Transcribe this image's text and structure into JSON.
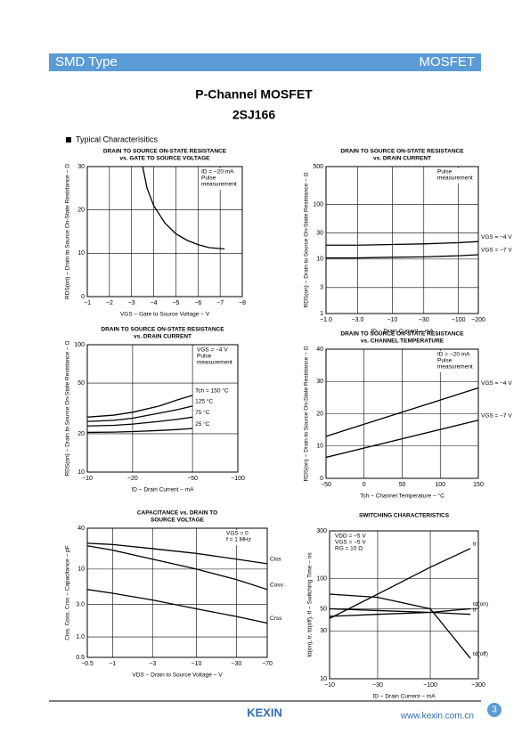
{
  "header": {
    "left": "SMD Type",
    "right": "MOSFET"
  },
  "title": "P-Channel MOSFET",
  "part": "2SJ166",
  "section": "Typical Characterisitics",
  "footer": {
    "logo": "KEXIN",
    "url": "www.kexin.com.cn",
    "page": "3"
  },
  "chart_data": [
    {
      "type": "line",
      "title": [
        "DRAIN TO SOURCE ON-STATE RESISTANCE",
        "vs. GATE TO SOURCE VOLTAGE"
      ],
      "xlabel": "VGS − Gate to Source Voltage − V",
      "ylabel": "RDS(on) − Drain to Source On-State Resistance − Ω",
      "xscale": "linear",
      "yscale": "linear",
      "xlim": [
        -1,
        -8
      ],
      "xticks": [
        {
          "value": -1,
          "label": "−1"
        },
        {
          "value": -2,
          "label": "−2"
        },
        {
          "value": -3,
          "label": "−3"
        },
        {
          "value": -4,
          "label": "−4"
        },
        {
          "value": -5,
          "label": "−5"
        },
        {
          "value": -6,
          "label": "−6"
        },
        {
          "value": -7,
          "label": "−7"
        },
        {
          "value": -8,
          "label": "−8"
        }
      ],
      "ylim": [
        0,
        30
      ],
      "yticks": [
        0,
        10,
        20,
        30
      ],
      "grid": true,
      "notes": [
        "ID = −20 mA",
        "Pulse",
        "measurement"
      ],
      "note_corner": "upper right",
      "series": [
        {
          "color": "#000000",
          "x": [
            -3.5,
            -3.7,
            -4,
            -4.5,
            -5,
            -5.5,
            -6,
            -6.5,
            -7.2
          ],
          "values": [
            30,
            25,
            21,
            17,
            14.5,
            13,
            12,
            11.3,
            11
          ]
        }
      ]
    },
    {
      "type": "line",
      "title": [
        "DRAIN TO SOURCE ON-STATE RESISTANCE",
        "vs. DRAIN CURRENT"
      ],
      "xlabel": "ID − Drain Current − mA",
      "ylabel": "RDS(on) − Drain to Source On-State Resistance − Ω",
      "xscale": "log",
      "yscale": "log",
      "xlim": [
        -1,
        -200
      ],
      "xticks": [
        {
          "value": -1,
          "label": "−1.0"
        },
        {
          "value": -3,
          "label": "−3.0"
        },
        {
          "value": -10,
          "label": "−10"
        },
        {
          "value": -30,
          "label": "−30"
        },
        {
          "value": -100,
          "label": "−100"
        },
        {
          "value": -200,
          "label": "−200"
        }
      ],
      "ylim": [
        1,
        500
      ],
      "yticks": [
        1,
        3,
        10,
        30,
        100,
        500
      ],
      "grid": true,
      "notes": [
        "Pulse",
        "measurement"
      ],
      "note_corner": "upper right",
      "series": [
        {
          "name": "VGS = −4 V",
          "color": "#000000",
          "x": [
            -1,
            -3,
            -10,
            -30,
            -100,
            -200
          ],
          "values": [
            18,
            18,
            18.5,
            19,
            20,
            21
          ]
        },
        {
          "name": "VGS = −7 V",
          "color": "#000000",
          "x": [
            -1,
            -3,
            -10,
            -30,
            -100,
            -200
          ],
          "values": [
            10.5,
            10.5,
            10.8,
            11,
            11.5,
            12
          ]
        }
      ]
    },
    {
      "type": "line",
      "title": [
        "DRAIN TO SOURCE ON-STATE RESISTANCE",
        "vs. DRAIN CURRENT"
      ],
      "xlabel": "ID − Drain Current − mA",
      "ylabel": "RDS(on) − Drain to Source On-State Resistance − Ω",
      "xscale": "log",
      "yscale": "log",
      "xlim": [
        -10,
        -100
      ],
      "xticks": [
        {
          "value": -10,
          "label": "−10"
        },
        {
          "value": -20,
          "label": "−20"
        },
        {
          "value": -50,
          "label": "−50"
        },
        {
          "value": -100,
          "label": "−100"
        }
      ],
      "ylim": [
        10,
        100
      ],
      "yticks": [
        10,
        20,
        50,
        100
      ],
      "grid": true,
      "notes": [
        "VGS = −4 V",
        "Pulse",
        "measurement"
      ],
      "note_corner": "upper right",
      "series": [
        {
          "name": "Tch = 150 °C",
          "color": "#000000",
          "x": [
            -10,
            -15,
            -20,
            -30,
            -40,
            -50
          ],
          "values": [
            27,
            28,
            29.5,
            33,
            37,
            40
          ]
        },
        {
          "name": "125 °C",
          "color": "#000000",
          "x": [
            -10,
            -15,
            -20,
            -30,
            -40,
            -50
          ],
          "values": [
            25,
            25.5,
            26.5,
            29,
            31,
            33
          ]
        },
        {
          "name": "75 °C",
          "color": "#000000",
          "x": [
            -10,
            -15,
            -20,
            -30,
            -40,
            -50
          ],
          "values": [
            23,
            23.3,
            23.8,
            25,
            26,
            27
          ]
        },
        {
          "name": "25 °C",
          "color": "#000000",
          "x": [
            -10,
            -15,
            -20,
            -30,
            -40,
            -50
          ],
          "values": [
            20.5,
            20.6,
            20.8,
            21.2,
            21.6,
            22
          ]
        }
      ]
    },
    {
      "type": "line",
      "title": [
        "DRAIN TO SOURCE ON-STATE RESISTANCE",
        "vs. CHANNEL TEMPERATURE"
      ],
      "xlabel": "Tch − Channel Temperature − °C",
      "ylabel": "RDS(on) − Drain to Source On-State Resistance − Ω",
      "xscale": "linear",
      "yscale": "linear",
      "xlim": [
        -50,
        150
      ],
      "xticks": [
        {
          "value": -50,
          "label": "−50"
        },
        0,
        50,
        100,
        150
      ],
      "ylim": [
        0,
        40
      ],
      "yticks": [
        0,
        10,
        20,
        30,
        40
      ],
      "grid": true,
      "notes": [
        "ID = −20 mA",
        "Pulse",
        "measurement"
      ],
      "note_corner": "upper right",
      "series": [
        {
          "name": "VGS = −4 V",
          "color": "#000000",
          "x": [
            -50,
            150
          ],
          "values": [
            13,
            28
          ]
        },
        {
          "name": "VGS = −7 V",
          "color": "#000000",
          "x": [
            -50,
            150
          ],
          "values": [
            6.5,
            18
          ]
        }
      ]
    },
    {
      "type": "line",
      "title": [
        "CAPACITANCE vs. DRAIN TO",
        "SOURCE VOLTAGE"
      ],
      "xlabel": "VDS − Drain to Source Voltage − V",
      "ylabel": "Ciss, Coss, Crss − Capacitance − pF",
      "xscale": "log",
      "yscale": "log",
      "xlim": [
        -0.5,
        -70
      ],
      "xticks": [
        {
          "value": -0.5,
          "label": "−0.5"
        },
        {
          "value": -1,
          "label": "−1"
        },
        {
          "value": -3,
          "label": "−3"
        },
        {
          "value": -10,
          "label": "−10"
        },
        {
          "value": -30,
          "label": "−30"
        },
        {
          "value": -70,
          "label": "−70"
        }
      ],
      "ylim": [
        0.5,
        40
      ],
      "yticks": [
        0.5,
        {
          "value": 1,
          "label": "1.0"
        },
        {
          "value": 3,
          "label": "3.0"
        },
        10,
        40
      ],
      "grid": true,
      "notes": [
        "VGS = 0",
        "f = 1 MHz"
      ],
      "note_corner": "upper right",
      "series": [
        {
          "name": "Ciss",
          "color": "#000000",
          "x": [
            -0.5,
            -1,
            -3,
            -10,
            -30,
            -70
          ],
          "values": [
            24,
            23,
            20,
            17,
            14,
            12
          ]
        },
        {
          "name": "Coss",
          "color": "#000000",
          "x": [
            -0.5,
            -1,
            -3,
            -10,
            -30,
            -70
          ],
          "values": [
            22,
            19,
            14,
            10,
            7,
            5
          ]
        },
        {
          "name": "Crss",
          "color": "#000000",
          "x": [
            -0.5,
            -1,
            -3,
            -10,
            -30,
            -70
          ],
          "values": [
            5,
            4.4,
            3.5,
            2.6,
            2,
            1.6
          ]
        }
      ]
    },
    {
      "type": "line",
      "title": [
        "SWITCHING CHARACTERISTICS"
      ],
      "xlabel": "ID − Drain Current − mA",
      "ylabel": "td(on), tr, td(off), tf − Switching Time − ns",
      "xscale": "log",
      "yscale": "log",
      "xlim": [
        -10,
        -300
      ],
      "xticks": [
        {
          "value": -10,
          "label": "−10"
        },
        {
          "value": -30,
          "label": "−30"
        },
        {
          "value": -100,
          "label": "−100"
        },
        {
          "value": -300,
          "label": "−300"
        }
      ],
      "ylim": [
        10,
        300
      ],
      "yticks": [
        10,
        30,
        50,
        100,
        300
      ],
      "grid": true,
      "notes": [
        "VDD = −5 V",
        "VGS = −5 V",
        "RG = 10 Ω"
      ],
      "note_corner": "upper left",
      "series": [
        {
          "name": "tr",
          "color": "#000000",
          "x": [
            -10,
            -30,
            -100,
            -250
          ],
          "values": [
            40,
            70,
            130,
            200
          ]
        },
        {
          "name": "tf",
          "color": "#000000",
          "x": [
            -10,
            -30,
            -100,
            -250
          ],
          "values": [
            50,
            48,
            46,
            44
          ]
        },
        {
          "name": "td(on)",
          "color": "#000000",
          "x": [
            -10,
            -30,
            -100,
            -250
          ],
          "values": [
            42,
            44,
            46,
            50
          ]
        },
        {
          "name": "td(off)",
          "color": "#000000",
          "x": [
            -10,
            -30,
            -100,
            -250
          ],
          "values": [
            70,
            65,
            50,
            16
          ]
        }
      ]
    }
  ]
}
